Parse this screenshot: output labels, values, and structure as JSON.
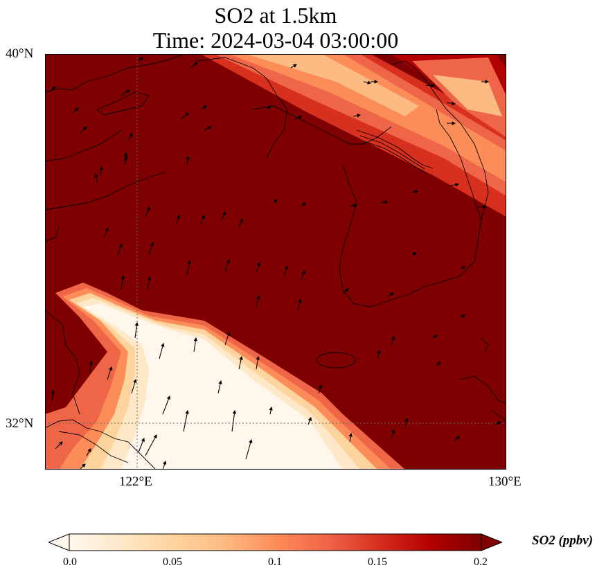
{
  "title": {
    "line1": "SO2 at 1.5km",
    "line2": "Time: 2024-03-04 03:00:00"
  },
  "axes": {
    "lat_ticks": [
      "40°N",
      "32°N"
    ],
    "lon_ticks": [
      "122°E",
      "130°E"
    ],
    "lon_range": [
      120,
      130
    ],
    "lat_range": [
      31,
      40
    ]
  },
  "colorbar": {
    "label": "SO2 (ppbv)",
    "ticks": [
      "0.0",
      "0.05",
      "0.1",
      "0.15",
      "0.2"
    ],
    "range": [
      0.0,
      0.2
    ],
    "extend": "both",
    "colormap": "OrRd",
    "colors": [
      "#fff7ec",
      "#fee8c8",
      "#fdd49e",
      "#fdbb84",
      "#fc8d59",
      "#ef6548",
      "#d7301f",
      "#b30000",
      "#7f0000"
    ]
  },
  "map": {
    "background_value": 0.2,
    "low_plume_value": 0.0,
    "gridlines": "dotted",
    "wind_vectors": "shown"
  }
}
